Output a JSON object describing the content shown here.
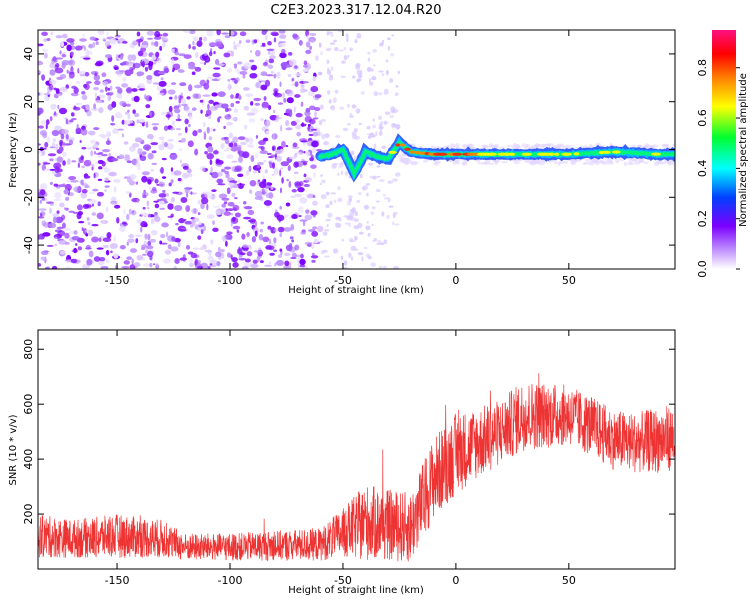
{
  "title": "C2E3.2023.317.12.04.R20",
  "chart_data": [
    {
      "type": "heatmap",
      "xlabel": "Height of straight line (km)",
      "ylabel": "Frequency (Hz)",
      "xlim": [
        -185,
        97
      ],
      "ylim": [
        -50,
        50
      ],
      "x_ticks": [
        -150,
        -100,
        -50,
        0,
        50
      ],
      "y_ticks": [
        -40,
        -20,
        0,
        20,
        40
      ],
      "colorbar": {
        "label": "Normalized spectral amplitude",
        "range": [
          0,
          0.95
        ],
        "ticks": [
          0.0,
          0.2,
          0.4,
          0.6,
          0.8
        ],
        "colormap": [
          "#ffffff",
          "#7b00ff",
          "#0050ff",
          "#00ffff",
          "#00ff30",
          "#ffff00",
          "#ff8000",
          "#ff0000",
          "#ff0080"
        ]
      },
      "signal_trace": {
        "description_points_x": [
          -60,
          -55,
          -50,
          -45,
          -40,
          -35,
          -30,
          -25,
          -20,
          -10,
          0,
          10,
          30,
          50,
          70,
          90,
          97
        ],
        "description_points_y": [
          -3,
          -2,
          0,
          -10,
          -1,
          -3,
          -4,
          3,
          -1,
          -2,
          -2,
          -2,
          -2,
          -2,
          -1,
          -2,
          -2
        ],
        "peak_amplitude": [
          0.3,
          0.3,
          0.35,
          0.3,
          0.35,
          0.35,
          0.35,
          0.8,
          0.7,
          0.8,
          0.75,
          0.7,
          0.65,
          0.6,
          0.55,
          0.55,
          0.5
        ]
      },
      "noise_region_x": [
        -185,
        -60
      ],
      "sparse_noise_x": [
        -60,
        -25
      ]
    },
    {
      "type": "line",
      "xlabel": "Height of straight line (km)",
      "ylabel": "SNR (10 * v/v)",
      "xlim": [
        -185,
        97
      ],
      "ylim": [
        0,
        870
      ],
      "x_ticks": [
        -150,
        -100,
        -50,
        0,
        50
      ],
      "y_ticks": [
        200,
        400,
        600,
        800
      ],
      "color": "#ee3333",
      "envelope": {
        "x": [
          -185,
          -170,
          -150,
          -130,
          -120,
          -100,
          -80,
          -60,
          -50,
          -40,
          -30,
          -20,
          -10,
          0,
          10,
          20,
          30,
          40,
          50,
          60,
          70,
          80,
          90,
          97
        ],
        "mean": [
          120,
          110,
          120,
          110,
          80,
          80,
          85,
          90,
          130,
          170,
          160,
          150,
          330,
          420,
          460,
          500,
          560,
          560,
          560,
          520,
          470,
          460,
          470,
          480
        ],
        "spread": [
          80,
          70,
          80,
          70,
          50,
          50,
          55,
          60,
          90,
          140,
          130,
          130,
          150,
          150,
          130,
          120,
          130,
          120,
          110,
          110,
          110,
          110,
          120,
          120
        ]
      }
    }
  ]
}
